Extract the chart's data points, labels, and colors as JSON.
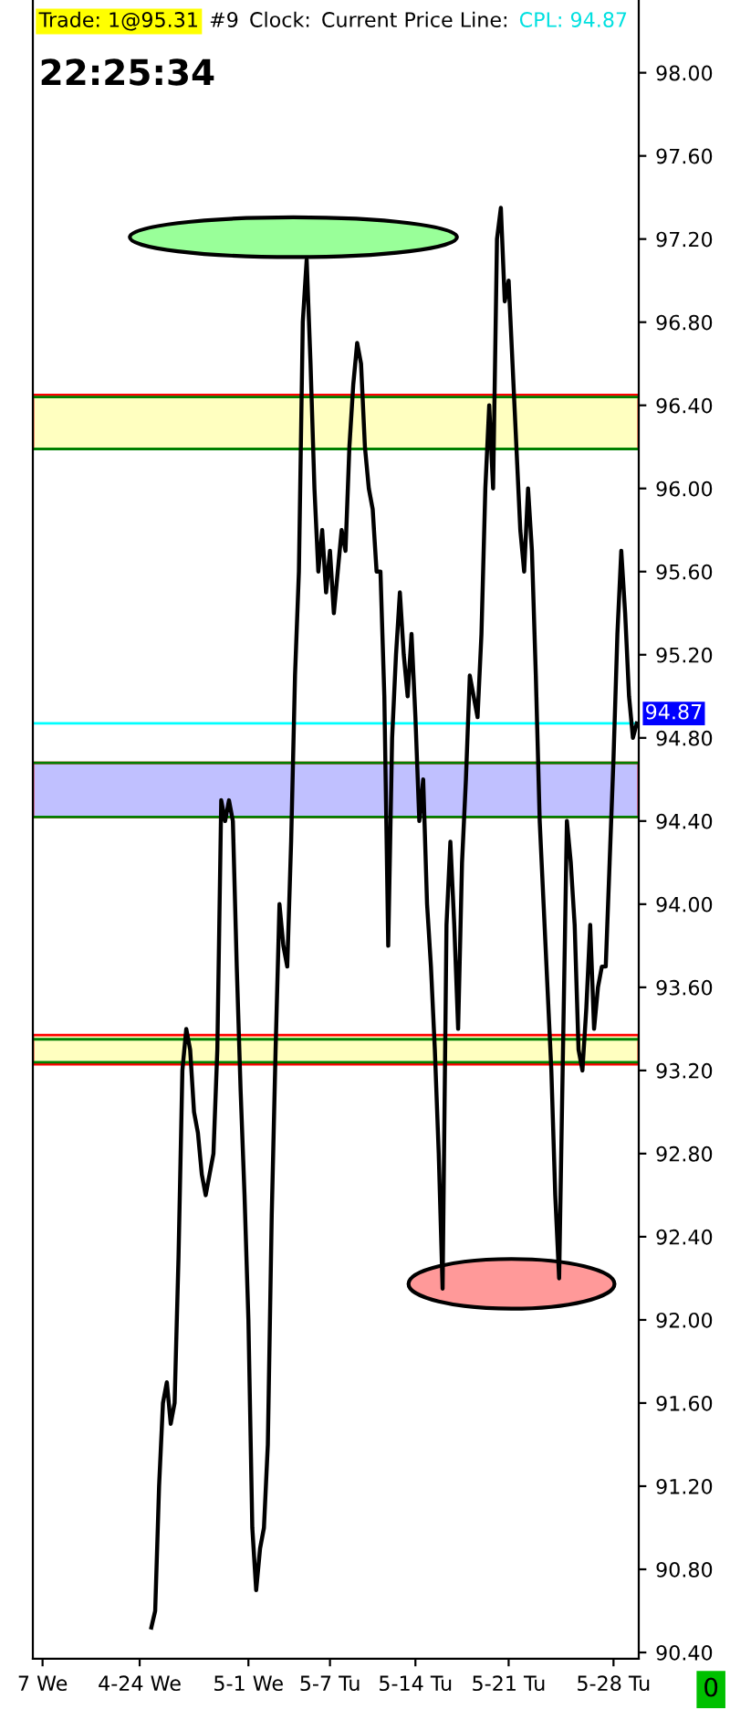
{
  "chart_data": {
    "type": "line",
    "annotations": [
      "Trade: 1@95.31",
      "#9",
      "Clock:",
      "Current Price Line:",
      "CPL: 94.87",
      "22:25:34",
      "0"
    ],
    "categories": [
      null,
      null,
      "7 We",
      null,
      null,
      null,
      null,
      null,
      null,
      null,
      null,
      null,
      null,
      null,
      null,
      null,
      null,
      null,
      null,
      null,
      null,
      null,
      null,
      null,
      null,
      null,
      null,
      "4-24 We",
      null,
      null,
      null,
      null,
      null,
      null,
      null,
      null,
      null,
      null,
      null,
      null,
      null,
      null,
      null,
      null,
      null,
      null,
      null,
      null,
      null,
      null,
      null,
      null,
      null,
      null,
      null,
      "5-1 We",
      null,
      null,
      null,
      null,
      null,
      null,
      null,
      null,
      null,
      null,
      null,
      null,
      null,
      null,
      null,
      null,
      null,
      null,
      null,
      null,
      "5-7 Tu",
      null,
      null,
      null,
      null,
      null,
      null,
      null,
      null,
      null,
      null,
      null,
      null,
      null,
      null,
      null,
      null,
      null,
      null,
      null,
      null,
      null,
      "5-14 Tu",
      null,
      null,
      null,
      null,
      null,
      null,
      null,
      null,
      null,
      null,
      null,
      null,
      null,
      null,
      null,
      null,
      null,
      null,
      null,
      null,
      null,
      null,
      null,
      "5-21 Tu",
      null,
      null,
      null,
      null,
      null,
      null,
      null,
      null,
      null,
      null,
      null,
      null,
      null,
      null,
      null,
      null,
      null,
      null,
      null,
      null,
      null,
      null,
      null,
      null,
      null,
      null,
      "5-28 Tu",
      null,
      null,
      null,
      null,
      null,
      null
    ],
    "series": [
      {
        "color": "#000000",
        "values": [
          null,
          null,
          null,
          null,
          null,
          null,
          null,
          null,
          null,
          null,
          null,
          null,
          null,
          null,
          null,
          null,
          null,
          null,
          null,
          null,
          null,
          null,
          null,
          null,
          null,
          null,
          null,
          null,
          null,
          null,
          90.52,
          90.6,
          91.2,
          91.6,
          91.7,
          91.5,
          91.6,
          92.3,
          93.2,
          93.4,
          93.3,
          93.0,
          92.9,
          92.7,
          92.6,
          92.7,
          92.8,
          93.3,
          94.5,
          94.4,
          94.5,
          94.4,
          93.7,
          93.1,
          92.6,
          92.0,
          91.0,
          90.7,
          90.9,
          91.0,
          91.4,
          92.5,
          93.3,
          94.0,
          93.8,
          93.7,
          94.3,
          95.1,
          95.6,
          96.8,
          97.1,
          96.6,
          96.0,
          95.6,
          95.8,
          95.5,
          95.7,
          95.4,
          95.6,
          95.8,
          95.7,
          96.2,
          96.5,
          96.7,
          96.6,
          96.2,
          96.0,
          95.9,
          95.6,
          95.6,
          95.0,
          93.8,
          94.8,
          95.2,
          95.5,
          95.2,
          95.0,
          95.3,
          94.9,
          94.4,
          94.6,
          94.0,
          93.7,
          93.3,
          92.8,
          92.15,
          93.9,
          94.3,
          93.9,
          93.4,
          94.2,
          94.6,
          95.1,
          95.0,
          94.9,
          95.3,
          96.0,
          96.4,
          96.0,
          97.2,
          97.35,
          96.9,
          97.0,
          96.6,
          96.2,
          95.8,
          95.6,
          96.0,
          95.7,
          95.1,
          94.4,
          94.0,
          93.6,
          93.2,
          92.6,
          92.2,
          93.3,
          94.4,
          94.2,
          93.9,
          93.3,
          93.2,
          93.5,
          93.9,
          93.4,
          93.6,
          93.7,
          93.7,
          94.2,
          94.7,
          95.3,
          95.7,
          95.4,
          95.0,
          94.8,
          94.87
        ]
      }
    ],
    "ylim": [
      90.37,
      98.35
    ],
    "yticks": [
      {
        "value": 90.4,
        "label": "90.40"
      },
      {
        "value": 90.8,
        "label": "90.80"
      },
      {
        "value": 91.2,
        "label": "91.20"
      },
      {
        "value": 91.6,
        "label": "91.60"
      },
      {
        "value": 92.0,
        "label": "92.00"
      },
      {
        "value": 92.4,
        "label": "92.40"
      },
      {
        "value": 92.8,
        "label": "92.80"
      },
      {
        "value": 93.2,
        "label": "93.20"
      },
      {
        "value": 93.6,
        "label": "93.60"
      },
      {
        "value": 94.0,
        "label": "94.00"
      },
      {
        "value": 94.4,
        "label": "94.40"
      },
      {
        "value": 94.8,
        "label": "94.80"
      },
      {
        "value": 95.2,
        "label": "95.20"
      },
      {
        "value": 95.6,
        "label": "95.60"
      },
      {
        "value": 96.0,
        "label": "96.00"
      },
      {
        "value": 96.4,
        "label": "96.40"
      },
      {
        "value": 96.8,
        "label": "96.80"
      },
      {
        "value": 97.2,
        "label": "97.20"
      },
      {
        "value": 97.6,
        "label": "97.60"
      },
      {
        "value": 98.0,
        "label": "98.00"
      }
    ],
    "bands": [
      {
        "axis": "y",
        "from": 96.19,
        "to": 96.45,
        "color": "#ffffc0"
      },
      {
        "axis": "y",
        "from": 94.42,
        "to": 94.68,
        "color": "#c0c0ff"
      },
      {
        "axis": "y",
        "from": 93.23,
        "to": 93.37,
        "color": "#ffffc0"
      }
    ],
    "ref_lines": [
      {
        "axis": "y",
        "value": 96.44,
        "color": "#008000"
      },
      {
        "axis": "y",
        "value": 96.19,
        "color": "#008000"
      },
      {
        "axis": "y",
        "value": 94.68,
        "color": "#008000"
      },
      {
        "axis": "y",
        "value": 94.42,
        "color": "#008000"
      },
      {
        "axis": "y",
        "value": 93.35,
        "color": "#008000"
      },
      {
        "axis": "y",
        "value": 93.24,
        "color": "#008000"
      },
      {
        "axis": "y",
        "value": 94.87,
        "color": "#00ffff",
        "label": "94.87"
      }
    ],
    "grid": false,
    "legend": false
  }
}
